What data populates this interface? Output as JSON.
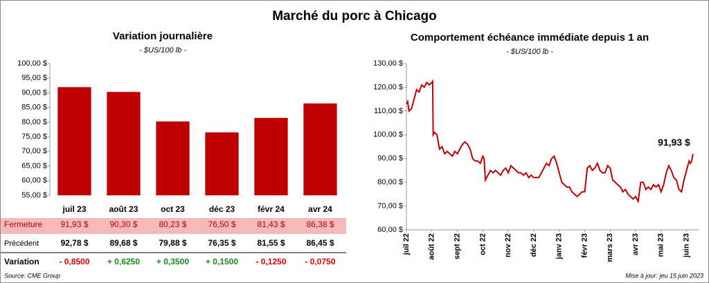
{
  "title": "Marché du porc à Chicago",
  "chart_data": [
    {
      "type": "bar",
      "title": "Variation journalière",
      "subtitle": "- $US/100 lb -",
      "categories": [
        "juil 23",
        "août 23",
        "oct 23",
        "déc 23",
        "févr 24",
        "avr 24"
      ],
      "values": [
        91.93,
        90.3,
        80.23,
        76.5,
        81.43,
        86.38
      ],
      "value_labels": [
        "91,93 $",
        "90,30 $",
        "80,23 $",
        "76,50 $",
        "81,43 $",
        "86,38 $"
      ],
      "color": "#c00000",
      "ylim": [
        55,
        100
      ],
      "yticks": [
        {
          "value": 55,
          "label": "55,00 $"
        },
        {
          "value": 60,
          "label": "60,00 $"
        },
        {
          "value": 65,
          "label": "65,00 $"
        },
        {
          "value": 70,
          "label": "70,00 $"
        },
        {
          "value": 75,
          "label": "75,00 $"
        },
        {
          "value": 80,
          "label": "80,00 $"
        },
        {
          "value": 85,
          "label": "85,00 $"
        },
        {
          "value": 90,
          "label": "90,00 $"
        },
        {
          "value": 95,
          "label": "95,00 $"
        },
        {
          "value": 100,
          "label": "100,00 $"
        }
      ],
      "grid": false
    },
    {
      "type": "line",
      "title": "Comportement échéance immédiate depuis 1 an",
      "subtitle": "- $US/100 lb -",
      "annotation": "91,93 $",
      "color": "#c00000",
      "x": [
        0.0,
        0.05,
        0.1,
        0.2,
        0.3,
        0.4,
        0.5,
        0.6,
        0.7,
        0.8,
        0.9,
        1.0,
        1.03,
        1.05,
        1.1,
        1.2,
        1.3,
        1.4,
        1.5,
        1.6,
        1.7,
        1.8,
        1.9,
        2.0,
        2.1,
        2.2,
        2.3,
        2.4,
        2.5,
        2.6,
        2.7,
        2.8,
        2.9,
        3.0,
        3.05,
        3.1,
        3.2,
        3.3,
        3.4,
        3.5,
        3.6,
        3.7,
        3.8,
        3.9,
        4.0,
        4.1,
        4.2,
        4.3,
        4.4,
        4.5,
        4.6,
        4.7,
        4.8,
        4.9,
        5.0,
        5.1,
        5.2,
        5.3,
        5.4,
        5.5,
        5.6,
        5.7,
        5.8,
        5.9,
        6.0,
        6.1,
        6.2,
        6.3,
        6.4,
        6.5,
        6.6,
        6.7,
        6.8,
        6.9,
        7.0,
        7.1,
        7.2,
        7.3,
        7.4,
        7.5,
        7.6,
        7.7,
        7.8,
        7.9,
        8.0,
        8.1,
        8.2,
        8.3,
        8.4,
        8.5,
        8.6,
        8.7,
        8.8,
        8.9,
        9.0,
        9.1,
        9.2,
        9.3,
        9.4,
        9.5,
        9.6,
        9.7,
        9.8,
        9.9,
        10.0,
        10.1,
        10.2,
        10.3,
        10.4,
        10.5,
        10.6,
        10.7,
        10.8,
        10.9,
        11.0,
        11.1,
        11.15,
        11.2,
        11.25
      ],
      "values": [
        113,
        114,
        110,
        111,
        115,
        119,
        118,
        121,
        120,
        122,
        121,
        122,
        122.5,
        100,
        101,
        100,
        94,
        95,
        92,
        93,
        92,
        91,
        93,
        92,
        94,
        96,
        97,
        96,
        94,
        90,
        89,
        89,
        88,
        91,
        90,
        81,
        83,
        85,
        84,
        85,
        84,
        83,
        85,
        86,
        84,
        87,
        86,
        85,
        84,
        84,
        83,
        84,
        82,
        83,
        82,
        82,
        82,
        84,
        86,
        88,
        87,
        90,
        91,
        88,
        84,
        80,
        79,
        78,
        78,
        76,
        75,
        74,
        75,
        76,
        76,
        86,
        87,
        85,
        86,
        88,
        85,
        84,
        84,
        87,
        86,
        81,
        80,
        79,
        78,
        76,
        77,
        75,
        74,
        73,
        74,
        72,
        80,
        80,
        77,
        78,
        77,
        79,
        78,
        79,
        76,
        79,
        84,
        87,
        85,
        82,
        81,
        77,
        76,
        81,
        85,
        89,
        88,
        89,
        91.93
      ],
      "xlim": [
        0,
        11.5
      ],
      "xticks": [
        {
          "value": 0,
          "label": "juil 22"
        },
        {
          "value": 1,
          "label": "août 22"
        },
        {
          "value": 2,
          "label": "sept 22"
        },
        {
          "value": 3,
          "label": "oct 22"
        },
        {
          "value": 4,
          "label": "nov 22"
        },
        {
          "value": 5,
          "label": "déc 22"
        },
        {
          "value": 6,
          "label": "janv 23"
        },
        {
          "value": 7,
          "label": "févr 23"
        },
        {
          "value": 8,
          "label": "mars 23"
        },
        {
          "value": 9,
          "label": "avr 23"
        },
        {
          "value": 10,
          "label": "mai 23"
        },
        {
          "value": 11,
          "label": "juin 23"
        }
      ],
      "ylim": [
        60,
        130
      ],
      "yticks": [
        {
          "value": 60,
          "label": "60,00 $"
        },
        {
          "value": 70,
          "label": "70,00 $"
        },
        {
          "value": 80,
          "label": "80,00 $"
        },
        {
          "value": 90,
          "label": "90,00 $"
        },
        {
          "value": 100,
          "label": "100,00 $"
        },
        {
          "value": 110,
          "label": "110,00 $"
        },
        {
          "value": 120,
          "label": "120,00 $"
        },
        {
          "value": 130,
          "label": "130,00 $"
        }
      ],
      "grid": false
    }
  ],
  "table": {
    "closing_label": "Fermeture",
    "previous": {
      "label": "Précédent",
      "values": [
        "92,78 $",
        "89,68 $",
        "79,88 $",
        "76,35 $",
        "81,55 $",
        "86,45 $"
      ]
    },
    "variation": {
      "label": "Variation",
      "values": [
        "- 0,8500",
        "+ 0,6250",
        "+ 0,3500",
        "+ 0,1500",
        "- 0,1250",
        "- 0,0750"
      ],
      "colors": [
        "#e00000",
        "#1a8a1a",
        "#1a8a1a",
        "#1a8a1a",
        "#e00000",
        "#e00000"
      ]
    }
  },
  "source": "Source: CME Group",
  "updated": "Mise à jour: jeu 15 juin 2023"
}
